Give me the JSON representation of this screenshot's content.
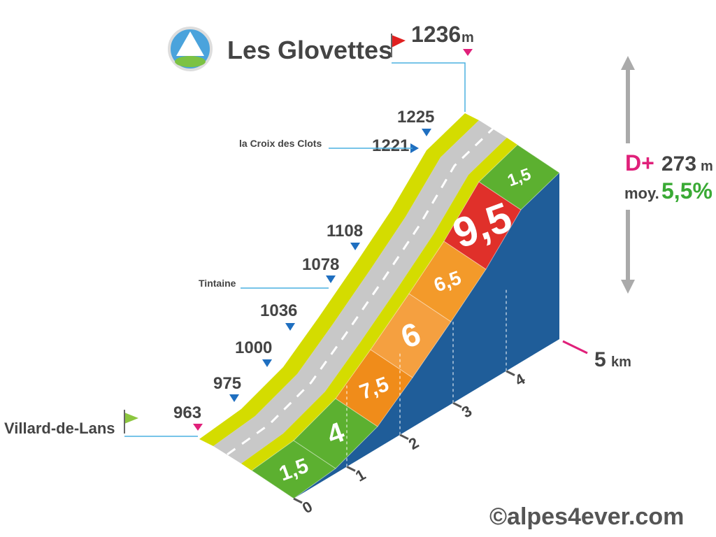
{
  "header": {
    "title": "Les Glovettes",
    "summit_elevation": 1236,
    "unit": "m"
  },
  "start": {
    "name": "Villard-de-Lans",
    "elevation": 963
  },
  "places": [
    {
      "name": "Tintaine"
    },
    {
      "name": "la Croix des Clots"
    }
  ],
  "elevations": [
    975,
    1000,
    1036,
    1078,
    1108,
    1221,
    1225
  ],
  "gradients": [
    "1,5",
    "4",
    "7,5",
    "6",
    "6,5",
    "9,5",
    "1,5"
  ],
  "km_labels": [
    "0",
    "1",
    "2",
    "3",
    "4"
  ],
  "end_distance": {
    "value": "5",
    "unit": "km"
  },
  "stats": {
    "gain_label": "D+",
    "gain": 273,
    "gain_unit": "m",
    "avg_label": "moy.",
    "avg": "5,5%"
  },
  "copyright": "©alpes4ever.com"
}
